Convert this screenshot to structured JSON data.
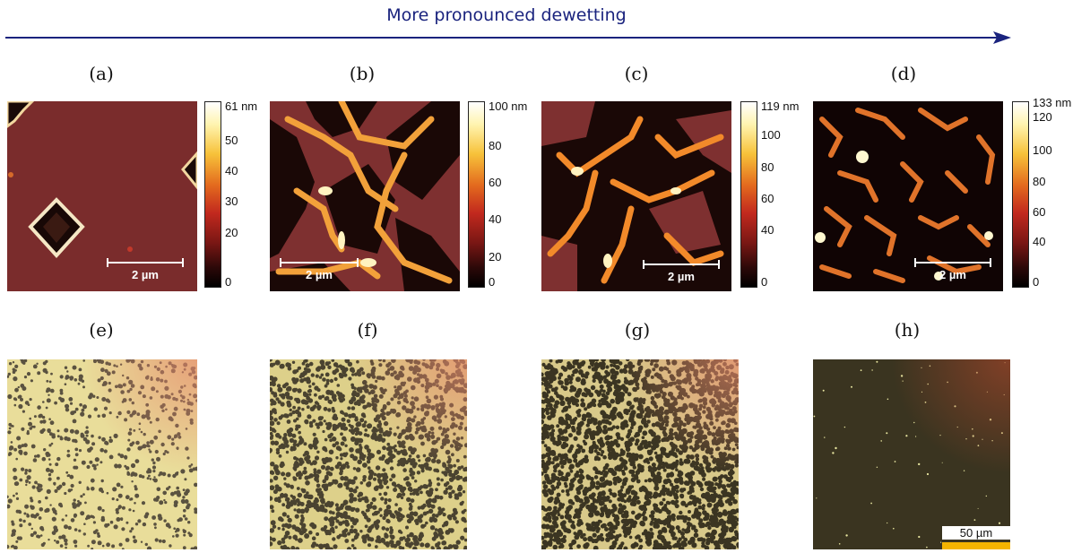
{
  "header": {
    "title": "More pronounced dewetting",
    "color": "#1a237e"
  },
  "afm_panels": [
    {
      "label": "(a)",
      "colorbar_max": "61 nm",
      "ticks": [
        "50",
        "40",
        "30",
        "20",
        "0"
      ],
      "scale": "2 µm"
    },
    {
      "label": "(b)",
      "colorbar_max": "100 nm",
      "ticks": [
        "80",
        "60",
        "40",
        "20",
        "0"
      ],
      "scale": "2 µm"
    },
    {
      "label": "(c)",
      "colorbar_max": "119 nm",
      "ticks": [
        "100",
        "80",
        "60",
        "40",
        "0"
      ],
      "scale": "2 µm"
    },
    {
      "label": "(d)",
      "colorbar_max": "133 nm",
      "ticks": [
        "120",
        "100",
        "80",
        "60",
        "40",
        "0"
      ],
      "scale": "2 µm"
    }
  ],
  "optical_panels": [
    {
      "label": "(e)"
    },
    {
      "label": "(f)"
    },
    {
      "label": "(g)"
    },
    {
      "label": "(h)",
      "scale": "50 µm"
    }
  ],
  "colors": {
    "afm_background": "#7a2c2c",
    "optical_light": "#e9dd9a",
    "optical_dark": "#3b3522",
    "scale_yellow": "#f5b400"
  }
}
